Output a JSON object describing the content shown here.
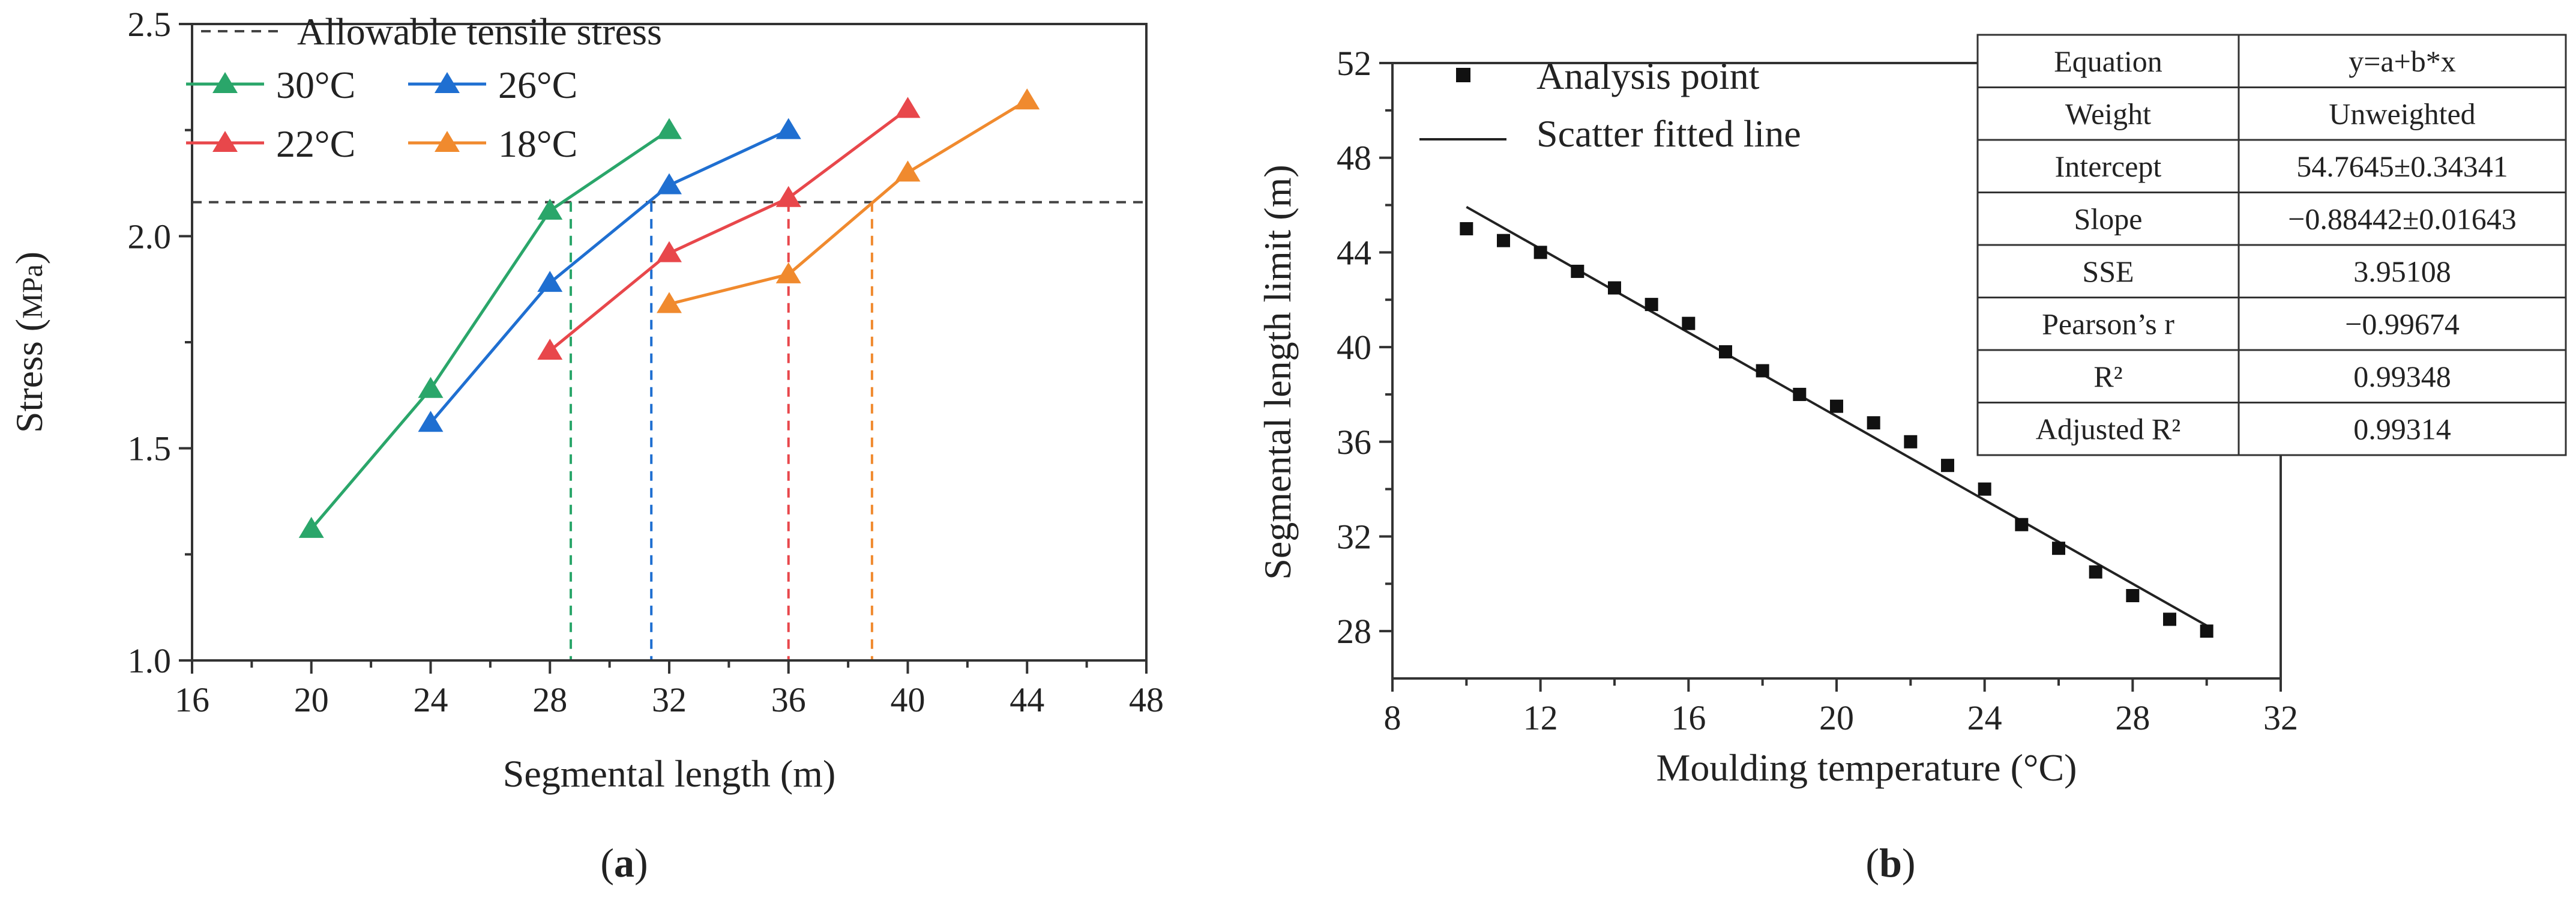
{
  "chart_data": [
    {
      "id": "a",
      "type": "line",
      "panel_label": "a",
      "xlabel": "Segmental length (m)",
      "ylabel_main": "Stress (",
      "ylabel_unit": "MPa",
      "ylabel_close": ")",
      "xlim": [
        16,
        48
      ],
      "ylim": [
        1.0,
        2.5
      ],
      "xticks": [
        16,
        20,
        24,
        28,
        32,
        36,
        40,
        44,
        48
      ],
      "yticks": [
        1.0,
        1.5,
        2.0,
        2.5
      ],
      "reference_line": {
        "label": "Allowable tensile stress",
        "y": 2.08
      },
      "series": [
        {
          "name": "30°C",
          "color": "#2aa66a",
          "x": [
            20,
            24,
            28,
            32
          ],
          "y": [
            1.31,
            1.64,
            2.06,
            2.25
          ],
          "limit_x": 28.7
        },
        {
          "name": "26°C",
          "color": "#1f6fd1",
          "x": [
            24,
            28,
            32,
            36
          ],
          "y": [
            1.56,
            1.89,
            2.12,
            2.25
          ],
          "limit_x": 31.4
        },
        {
          "name": "22°C",
          "color": "#e8474b",
          "x": [
            28,
            32,
            36,
            40
          ],
          "y": [
            1.73,
            1.96,
            2.09,
            2.3
          ],
          "limit_x": 36.0
        },
        {
          "name": "18°C",
          "color": "#f08a2e",
          "x": [
            32,
            36,
            40,
            44
          ],
          "y": [
            1.84,
            1.91,
            2.15,
            2.32
          ],
          "limit_x": 38.8
        }
      ]
    },
    {
      "id": "b",
      "type": "scatter",
      "panel_label": "b",
      "xlabel": "Moulding temperature (°C)",
      "ylabel": "Segmental  length limit (m)",
      "xlim": [
        8,
        32
      ],
      "ylim": [
        26,
        52
      ],
      "xticks": [
        8,
        12,
        16,
        20,
        24,
        28,
        32
      ],
      "yticks": [
        28,
        32,
        36,
        40,
        44,
        48,
        52
      ],
      "legend": {
        "points_label": "Analysis point",
        "line_label": "Scatter fitted line"
      },
      "points": {
        "x": [
          10,
          11,
          12,
          13,
          14,
          15,
          16,
          17,
          18,
          19,
          20,
          21,
          22,
          23,
          24,
          25,
          26,
          27,
          28,
          29,
          30
        ],
        "y": [
          45.0,
          44.5,
          44.0,
          43.2,
          42.5,
          41.8,
          41.0,
          39.8,
          39.0,
          38.0,
          37.5,
          36.8,
          36.0,
          35.0,
          34.0,
          32.5,
          31.5,
          30.5,
          29.5,
          28.5,
          28.0
        ]
      },
      "fit": {
        "intercept": 54.7645,
        "slope": -0.88442,
        "x_range": [
          10,
          30
        ]
      },
      "stats_table": [
        {
          "label": "Equation",
          "value": "y=a+b*x"
        },
        {
          "label": "Weight",
          "value": "Unweighted"
        },
        {
          "label": "Intercept",
          "value": "54.7645±0.34341"
        },
        {
          "label": "Slope",
          "value": "−0.88442±0.01643"
        },
        {
          "label": "SSE",
          "value": "3.95108"
        },
        {
          "label": "Pearson’s r",
          "value": "−0.99674"
        },
        {
          "label": "R²",
          "value": "0.99348"
        },
        {
          "label": "Adjusted R²",
          "value": "0.99314"
        }
      ]
    }
  ]
}
